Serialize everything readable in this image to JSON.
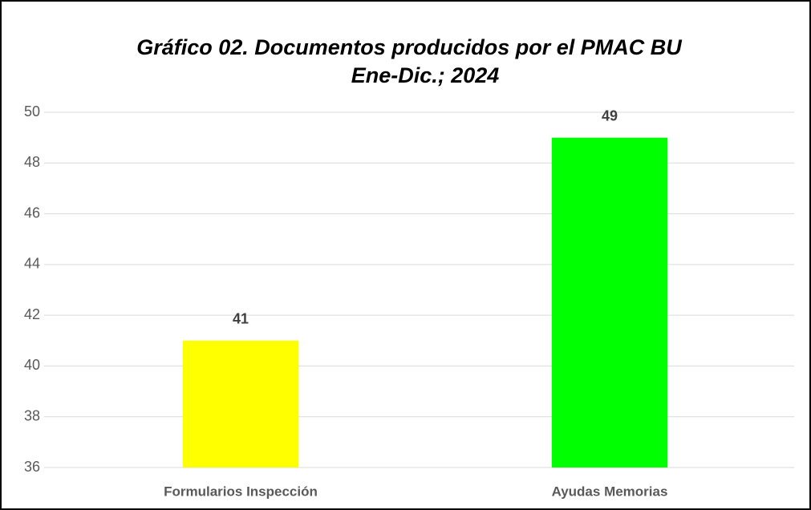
{
  "chart_data": {
    "type": "bar",
    "title": "Gráfico 02. Documentos  producidos por el PMAC BU",
    "subtitle": "Ene-Dic.; 2024",
    "categories": [
      "Formularios Inspección",
      "Ayudas Memorias"
    ],
    "values": [
      41,
      49
    ],
    "colors": [
      "#ffff00",
      "#00ff00"
    ],
    "ylim": [
      36,
      50
    ],
    "yticks": [
      36,
      38,
      40,
      42,
      44,
      46,
      48,
      50
    ],
    "grid": true
  }
}
